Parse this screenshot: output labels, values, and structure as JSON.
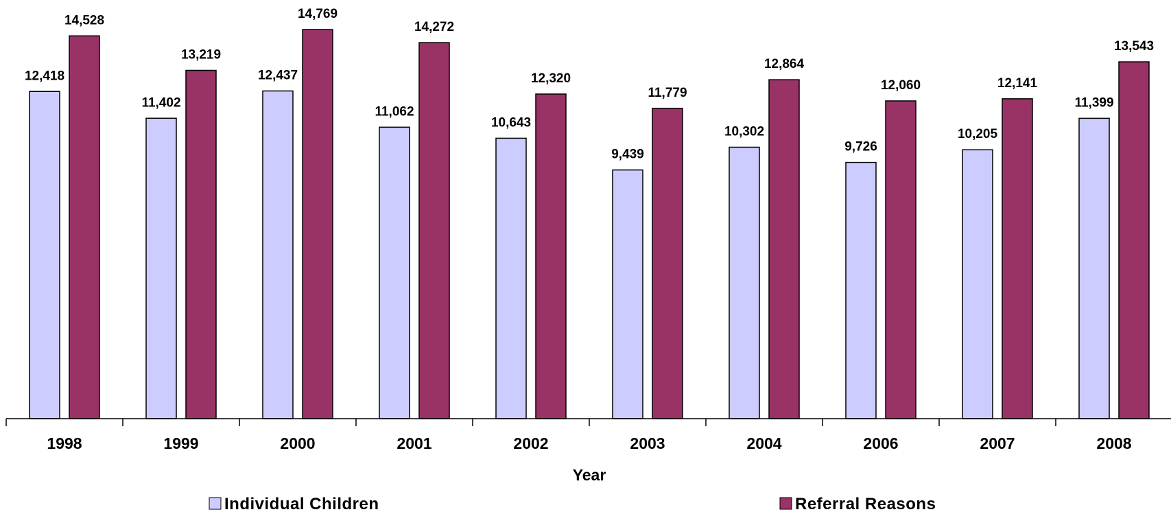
{
  "chart_data": {
    "type": "bar",
    "title": "",
    "xlabel": "Year",
    "ylabel": "",
    "categories": [
      "1998",
      "1999",
      "2000",
      "2001",
      "2002",
      "2003",
      "2004",
      "2006",
      "2007",
      "2008"
    ],
    "series": [
      {
        "name": "Individual Children",
        "color": "#ccccff",
        "values": [
          12418,
          11402,
          12437,
          11062,
          10643,
          9439,
          10302,
          9726,
          10205,
          11399
        ],
        "labels": [
          "12,418",
          "11,402",
          "12,437",
          "11,062",
          "10,643",
          "9,439",
          "10,302",
          "9,726",
          "10,205",
          "11,399"
        ]
      },
      {
        "name": "Referral Reasons",
        "color": "#993366",
        "values": [
          14528,
          13219,
          14769,
          14272,
          12320,
          11779,
          12864,
          12060,
          12141,
          13543
        ],
        "labels": [
          "14,528",
          "13,219",
          "14,769",
          "14,272",
          "12,320",
          "11,779",
          "12,864",
          "12,060",
          "12,141",
          "13,543"
        ]
      }
    ],
    "ylim": [
      0,
      15000
    ],
    "grid": false,
    "legend_position": "bottom"
  }
}
